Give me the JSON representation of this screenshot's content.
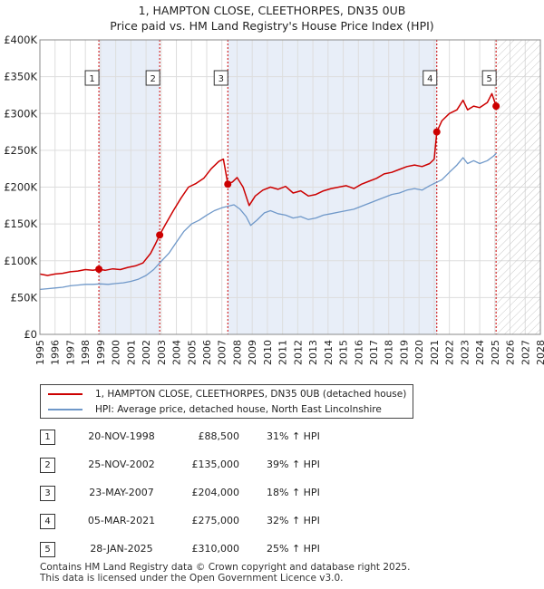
{
  "title_line1": "1, HAMPTON CLOSE, CLEETHORPES, DN35 0UB",
  "title_line2": "Price paid vs. HM Land Registry's House Price Index (HPI)",
  "colors": {
    "property_line": "#cc0000",
    "hpi_line": "#6f98c9",
    "shade": "#e8eef8",
    "grid": "#dddddd",
    "marker_vline": "#cc0000"
  },
  "chart_data": {
    "type": "line",
    "xlim": [
      1995,
      2028
    ],
    "ylim": [
      0,
      400000
    ],
    "x_ticks": [
      "1995",
      "1996",
      "1997",
      "1998",
      "1999",
      "2000",
      "2001",
      "2002",
      "2003",
      "2004",
      "2005",
      "2006",
      "2007",
      "2008",
      "2009",
      "2010",
      "2011",
      "2012",
      "2013",
      "2014",
      "2015",
      "2016",
      "2017",
      "2018",
      "2019",
      "2020",
      "2021",
      "2022",
      "2023",
      "2024",
      "2025",
      "2026",
      "2027",
      "2028"
    ],
    "y_ticks": [
      {
        "value": 0,
        "label": "£0"
      },
      {
        "value": 50000,
        "label": "£50K"
      },
      {
        "value": 100000,
        "label": "£100K"
      },
      {
        "value": 150000,
        "label": "£150K"
      },
      {
        "value": 200000,
        "label": "£200K"
      },
      {
        "value": 250000,
        "label": "£250K"
      },
      {
        "value": 300000,
        "label": "£300K"
      },
      {
        "value": 350000,
        "label": "£350K"
      },
      {
        "value": 400000,
        "label": "£400K"
      }
    ],
    "shaded_ranges": [
      [
        1998.89,
        2002.9
      ],
      [
        2007.39,
        2021.17
      ]
    ],
    "future_hatch_from": 2025.08,
    "series": [
      {
        "name": "1, HAMPTON CLOSE, CLEETHORPES, DN35 0UB (detached house)",
        "color": "#cc0000",
        "points": [
          [
            1995.0,
            82000
          ],
          [
            1995.5,
            80000
          ],
          [
            1996.0,
            82000
          ],
          [
            1996.5,
            83000
          ],
          [
            1997.0,
            85000
          ],
          [
            1997.5,
            86000
          ],
          [
            1998.0,
            88000
          ],
          [
            1998.5,
            87000
          ],
          [
            1998.89,
            88500
          ],
          [
            1999.3,
            87000
          ],
          [
            1999.8,
            89000
          ],
          [
            2000.3,
            88000
          ],
          [
            2000.8,
            91000
          ],
          [
            2001.3,
            93000
          ],
          [
            2001.8,
            97000
          ],
          [
            2002.3,
            110000
          ],
          [
            2002.6,
            122000
          ],
          [
            2002.9,
            135000
          ],
          [
            2003.3,
            150000
          ],
          [
            2003.8,
            168000
          ],
          [
            2004.3,
            185000
          ],
          [
            2004.8,
            200000
          ],
          [
            2005.3,
            205000
          ],
          [
            2005.8,
            212000
          ],
          [
            2006.3,
            225000
          ],
          [
            2006.8,
            235000
          ],
          [
            2007.1,
            238000
          ],
          [
            2007.39,
            204000
          ],
          [
            2007.7,
            207000
          ],
          [
            2008.0,
            213000
          ],
          [
            2008.4,
            200000
          ],
          [
            2008.8,
            175000
          ],
          [
            2009.2,
            188000
          ],
          [
            2009.7,
            196000
          ],
          [
            2010.2,
            200000
          ],
          [
            2010.7,
            197000
          ],
          [
            2011.2,
            201000
          ],
          [
            2011.7,
            192000
          ],
          [
            2012.2,
            195000
          ],
          [
            2012.7,
            188000
          ],
          [
            2013.2,
            190000
          ],
          [
            2013.7,
            195000
          ],
          [
            2014.2,
            198000
          ],
          [
            2014.7,
            200000
          ],
          [
            2015.2,
            202000
          ],
          [
            2015.7,
            198000
          ],
          [
            2016.2,
            204000
          ],
          [
            2016.7,
            208000
          ],
          [
            2017.2,
            212000
          ],
          [
            2017.7,
            218000
          ],
          [
            2018.2,
            220000
          ],
          [
            2018.7,
            224000
          ],
          [
            2019.2,
            228000
          ],
          [
            2019.7,
            230000
          ],
          [
            2020.2,
            228000
          ],
          [
            2020.7,
            232000
          ],
          [
            2021.0,
            238000
          ],
          [
            2021.17,
            275000
          ],
          [
            2021.5,
            290000
          ],
          [
            2022.0,
            300000
          ],
          [
            2022.5,
            305000
          ],
          [
            2022.9,
            318000
          ],
          [
            2023.2,
            305000
          ],
          [
            2023.6,
            310000
          ],
          [
            2024.0,
            308000
          ],
          [
            2024.5,
            315000
          ],
          [
            2024.8,
            327000
          ],
          [
            2025.08,
            310000
          ]
        ]
      },
      {
        "name": "HPI: Average price, detached house, North East Lincolnshire",
        "color": "#6f98c9",
        "points": [
          [
            1995.0,
            61000
          ],
          [
            1995.5,
            62000
          ],
          [
            1996.0,
            63000
          ],
          [
            1996.5,
            64000
          ],
          [
            1997.0,
            66000
          ],
          [
            1997.5,
            67000
          ],
          [
            1998.0,
            68000
          ],
          [
            1998.5,
            68000
          ],
          [
            1999.0,
            68500
          ],
          [
            1999.5,
            68000
          ],
          [
            2000.0,
            69000
          ],
          [
            2000.5,
            70000
          ],
          [
            2001.0,
            72000
          ],
          [
            2001.5,
            75000
          ],
          [
            2002.0,
            80000
          ],
          [
            2002.5,
            88000
          ],
          [
            2002.9,
            97000
          ],
          [
            2003.5,
            110000
          ],
          [
            2004.0,
            125000
          ],
          [
            2004.5,
            140000
          ],
          [
            2005.0,
            150000
          ],
          [
            2005.5,
            155000
          ],
          [
            2006.0,
            162000
          ],
          [
            2006.5,
            168000
          ],
          [
            2007.0,
            172000
          ],
          [
            2007.4,
            174000
          ],
          [
            2007.8,
            176000
          ],
          [
            2008.2,
            170000
          ],
          [
            2008.6,
            160000
          ],
          [
            2008.9,
            148000
          ],
          [
            2009.3,
            155000
          ],
          [
            2009.8,
            165000
          ],
          [
            2010.2,
            168000
          ],
          [
            2010.7,
            164000
          ],
          [
            2011.2,
            162000
          ],
          [
            2011.7,
            158000
          ],
          [
            2012.2,
            160000
          ],
          [
            2012.7,
            156000
          ],
          [
            2013.2,
            158000
          ],
          [
            2013.7,
            162000
          ],
          [
            2014.2,
            164000
          ],
          [
            2014.7,
            166000
          ],
          [
            2015.2,
            168000
          ],
          [
            2015.7,
            170000
          ],
          [
            2016.2,
            174000
          ],
          [
            2016.7,
            178000
          ],
          [
            2017.2,
            182000
          ],
          [
            2017.7,
            186000
          ],
          [
            2018.2,
            190000
          ],
          [
            2018.7,
            192000
          ],
          [
            2019.2,
            196000
          ],
          [
            2019.7,
            198000
          ],
          [
            2020.2,
            196000
          ],
          [
            2020.7,
            202000
          ],
          [
            2021.0,
            205000
          ],
          [
            2021.5,
            210000
          ],
          [
            2022.0,
            220000
          ],
          [
            2022.5,
            230000
          ],
          [
            2022.9,
            240000
          ],
          [
            2023.2,
            232000
          ],
          [
            2023.6,
            236000
          ],
          [
            2024.0,
            232000
          ],
          [
            2024.5,
            236000
          ],
          [
            2024.9,
            242000
          ],
          [
            2025.1,
            246000
          ]
        ]
      }
    ],
    "markers": [
      {
        "label": "1",
        "x": 1998.89,
        "y": 88500
      },
      {
        "label": "2",
        "x": 2002.9,
        "y": 135000
      },
      {
        "label": "3",
        "x": 2007.39,
        "y": 204000
      },
      {
        "label": "4",
        "x": 2021.17,
        "y": 275000
      },
      {
        "label": "5",
        "x": 2025.08,
        "y": 310000
      }
    ]
  },
  "legend": [
    {
      "label": "1, HAMPTON CLOSE, CLEETHORPES, DN35 0UB (detached house)",
      "color": "#cc0000"
    },
    {
      "label": "HPI: Average price, detached house, North East Lincolnshire",
      "color": "#6f98c9"
    }
  ],
  "transactions": [
    {
      "num": "1",
      "date": "20-NOV-1998",
      "price": "£88,500",
      "hpi": "31% ↑ HPI"
    },
    {
      "num": "2",
      "date": "25-NOV-2002",
      "price": "£135,000",
      "hpi": "39% ↑ HPI"
    },
    {
      "num": "3",
      "date": "23-MAY-2007",
      "price": "£204,000",
      "hpi": "18% ↑ HPI"
    },
    {
      "num": "4",
      "date": "05-MAR-2021",
      "price": "£275,000",
      "hpi": "32% ↑ HPI"
    },
    {
      "num": "5",
      "date": "28-JAN-2025",
      "price": "£310,000",
      "hpi": "25% ↑ HPI"
    }
  ],
  "footer_line1": "Contains HM Land Registry data © Crown copyright and database right 2025.",
  "footer_line2": "This data is licensed under the Open Government Licence v3.0."
}
